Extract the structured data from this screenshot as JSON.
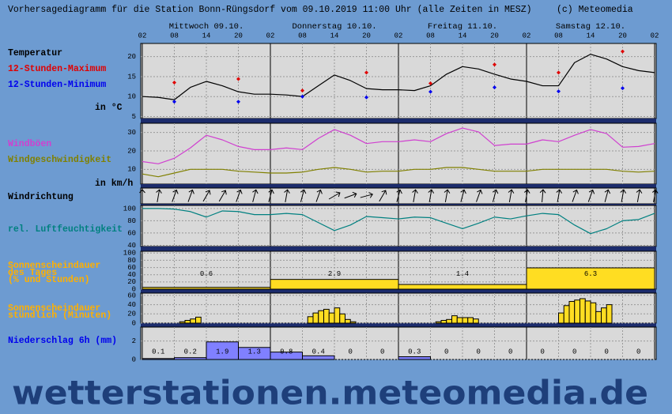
{
  "header": {
    "title": "Vorhersagediagramm für die Station Bonn-Rüngsdorf vom 09.10.2019 11:00 Uhr (alle Zeiten in MESZ)",
    "copyright": "(c) Meteomedia"
  },
  "time_axis": {
    "hours": [
      "02",
      "08",
      "14",
      "20",
      "02",
      "08",
      "14",
      "20",
      "02",
      "08",
      "14",
      "20",
      "02",
      "08",
      "14",
      "20",
      "02"
    ],
    "days": [
      "Mittwoch 09.10.",
      "Donnerstag 10.10.",
      "Freitag 11.10.",
      "Samstag 12.10."
    ]
  },
  "chart_data": [
    {
      "type": "line",
      "title": "Temperatur",
      "unit": "in °C",
      "ylim": [
        4.5,
        23.3
      ],
      "yticks": [
        5,
        10,
        15,
        20
      ],
      "grid": true,
      "series": [
        {
          "color": "#000000",
          "values": [
            10,
            9.8,
            9.2,
            12.3,
            13.8,
            12.7,
            11.2,
            10.6,
            10.6,
            10.4,
            10,
            12.7,
            15.4,
            14,
            12,
            11.7,
            11.7,
            11.5,
            12.7,
            15.6,
            17.5,
            16.9,
            15.6,
            14.4,
            13.8,
            12.7,
            12.7,
            18.5,
            20.6,
            19.4,
            17.5,
            16.5,
            16
          ]
        },
        {
          "name": "12-Stunden-Maximum",
          "color": "#e00000",
          "marker": "diamond",
          "values": [
            null,
            null,
            13.5,
            null,
            null,
            null,
            14.4,
            null,
            null,
            null,
            11.5,
            null,
            null,
            null,
            16,
            null,
            null,
            null,
            13.3,
            null,
            null,
            null,
            18,
            null,
            null,
            null,
            16,
            null,
            null,
            null,
            21.3,
            null,
            null
          ]
        },
        {
          "name": "12-Stunden-Minimum",
          "color": "#0000ee",
          "marker": "diamond",
          "values": [
            null,
            null,
            8.7,
            null,
            null,
            null,
            8.7,
            null,
            null,
            null,
            10,
            null,
            null,
            null,
            9.8,
            null,
            null,
            null,
            11.2,
            null,
            null,
            null,
            12.3,
            null,
            null,
            null,
            11.3,
            null,
            null,
            null,
            12.1,
            null,
            null
          ]
        }
      ]
    },
    {
      "type": "line",
      "unit": "in km/h",
      "ylim": [
        2,
        35
      ],
      "yticks": [
        10,
        20,
        30
      ],
      "grid": true,
      "series": [
        {
          "name": "Windböen",
          "color": "#d040d0",
          "values": [
            14.2,
            13,
            16,
            21.6,
            28.5,
            26,
            22.4,
            20.7,
            20.7,
            21.6,
            20.7,
            26.8,
            31.6,
            28.5,
            24,
            25,
            25,
            26,
            25,
            29.4,
            32.4,
            30.3,
            22.9,
            23.7,
            23.7,
            26,
            25,
            28.5,
            31.6,
            29.4,
            22,
            22.4,
            24
          ]
        },
        {
          "name": "Windgeschwindigkeit",
          "color": "#808000",
          "values": [
            7.5,
            6,
            8,
            10,
            10,
            10,
            9,
            8.5,
            8,
            8,
            8.5,
            10,
            11,
            10,
            8.5,
            9,
            9,
            10,
            10,
            11,
            11,
            10,
            9,
            9,
            9,
            10,
            10,
            10,
            10,
            10,
            9,
            8.5,
            9
          ]
        }
      ]
    },
    {
      "type": "arrows",
      "title": "Windrichtung",
      "values": [
        0,
        10,
        20,
        20,
        30,
        30,
        20,
        15,
        15,
        10,
        15,
        20,
        60,
        70,
        75,
        30,
        15,
        10,
        10,
        10,
        15,
        20,
        15,
        10,
        10,
        5,
        10,
        20,
        20,
        15,
        10,
        10,
        10
      ]
    },
    {
      "type": "line",
      "ylim": [
        38,
        105
      ],
      "yticks": [
        40,
        60,
        80,
        100
      ],
      "grid": true,
      "series": [
        {
          "name": "rel. Luftfeuchtigkeit",
          "color": "#008080",
          "values": [
            100,
            100,
            99,
            95,
            86,
            96,
            95,
            90,
            90,
            92,
            90,
            77,
            64,
            73,
            87,
            85,
            83,
            86,
            85,
            76,
            67,
            76,
            86,
            83,
            88,
            92,
            90,
            73,
            59,
            67,
            80,
            82,
            92
          ]
        }
      ]
    },
    {
      "type": "bar",
      "title": [
        "Sonnenscheindauer",
        "des Tages",
        "(% und Stunden)"
      ],
      "color": "#ffdd22",
      "ylim": [
        0,
        105
      ],
      "yticks": [
        0,
        20,
        40,
        60,
        80,
        100
      ],
      "grid": true,
      "values": [
        5,
        27,
        13,
        59
      ],
      "hours": [
        0.6,
        2.9,
        1.4,
        6.3
      ]
    },
    {
      "type": "bar",
      "title": [
        "Sonnenscheindauer",
        "stündlich (Minuten)"
      ],
      "color": "#ffdd22",
      "ylim": [
        0,
        65
      ],
      "yticks": [
        0,
        20,
        40,
        60
      ],
      "grid": true,
      "values": [
        0,
        0,
        0,
        0,
        0,
        0,
        0,
        3,
        6,
        9,
        13,
        0,
        0,
        0,
        0,
        0,
        0,
        0,
        0,
        0,
        0,
        0,
        0,
        0,
        0,
        0,
        0,
        0,
        0,
        0,
        0,
        14,
        22,
        27,
        30,
        22,
        33,
        20,
        8,
        3,
        0,
        0,
        0,
        0,
        0,
        0,
        0,
        0,
        0,
        0,
        0,
        0,
        0,
        0,
        0,
        3,
        6,
        8,
        16,
        12,
        12,
        12,
        9,
        0,
        0,
        0,
        0,
        0,
        0,
        0,
        0,
        0,
        0,
        0,
        0,
        0,
        0,
        0,
        22,
        38,
        47,
        50,
        53,
        48,
        44,
        25,
        33,
        40,
        0,
        0,
        0,
        0,
        0,
        0,
        0,
        0
      ]
    },
    {
      "type": "bar",
      "title": "Niederschlag 6h (mm)",
      "color": "#8080ff",
      "ylim": [
        0,
        3.5
      ],
      "yticks": [
        0,
        2
      ],
      "grid": true,
      "data_labels": true,
      "values": [
        0.1,
        0.2,
        1.9,
        1.3,
        0.8,
        0.4,
        0,
        0,
        0.3,
        0,
        0,
        0,
        0,
        0,
        0,
        0
      ]
    }
  ],
  "footer": "wetterstationen.meteomedia.de"
}
